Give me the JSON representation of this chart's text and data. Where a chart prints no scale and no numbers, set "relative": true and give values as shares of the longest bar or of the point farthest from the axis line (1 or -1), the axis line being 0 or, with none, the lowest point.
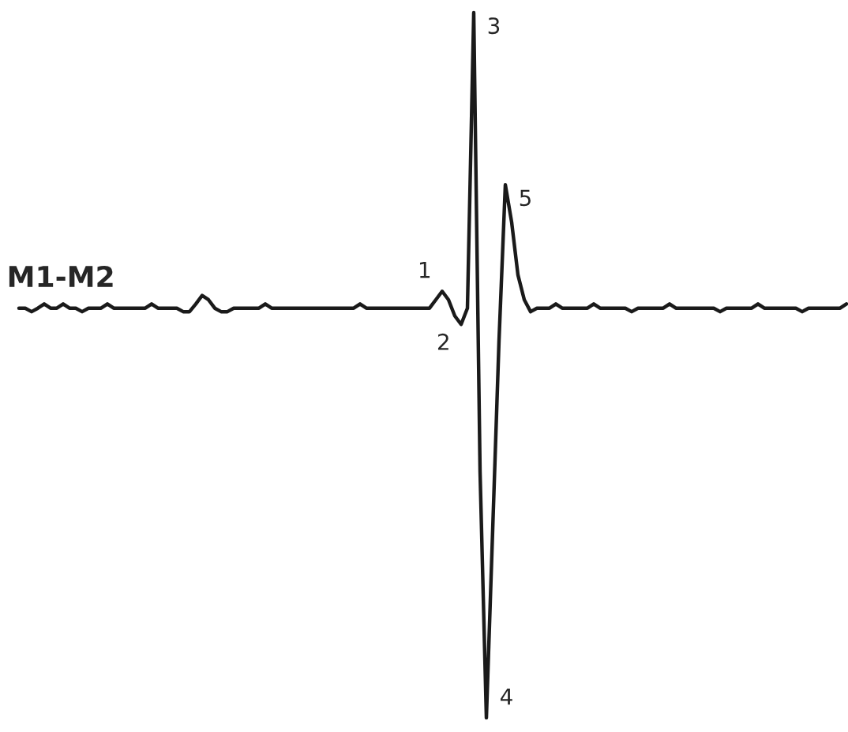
{
  "chart_data": {
    "type": "line",
    "relative": true,
    "annotations": [
      "M1-M2",
      "1",
      "2",
      "3",
      "4",
      "5"
    ],
    "categories": [
      null,
      null,
      null,
      null,
      null,
      null,
      null,
      null,
      null,
      null,
      null,
      null,
      null,
      null,
      null,
      null,
      null,
      null,
      null,
      null,
      null,
      null,
      null,
      null,
      null,
      null,
      null,
      null,
      null,
      null,
      null,
      null,
      null,
      null,
      null,
      null,
      null,
      null,
      null,
      null,
      null,
      null,
      null,
      null,
      null,
      null,
      null,
      null,
      null,
      null,
      null,
      null,
      null,
      null,
      null,
      null,
      null,
      null,
      null,
      null,
      null,
      null,
      null,
      null,
      null,
      null,
      null,
      null,
      null,
      null,
      null,
      null,
      null,
      null,
      null,
      null,
      null,
      null,
      null,
      null,
      null,
      null,
      null,
      null,
      null,
      null,
      null,
      null,
      null,
      null,
      null,
      null,
      null,
      null,
      null,
      null,
      null,
      null,
      null,
      null,
      null,
      null,
      null,
      null,
      null,
      null,
      null,
      null,
      null,
      null,
      null,
      null,
      null,
      null,
      null,
      null,
      null,
      null,
      null,
      null,
      null,
      null,
      null,
      null,
      null,
      null,
      null,
      null,
      null,
      null,
      null,
      null
    ],
    "series": [
      {
        "color": "#1a1a1a",
        "values": [
          0.581,
          0.581,
          0.576,
          0.581,
          0.587,
          0.581,
          0.581,
          0.587,
          0.581,
          0.581,
          0.576,
          0.581,
          0.581,
          0.581,
          0.587,
          0.581,
          0.581,
          0.581,
          0.581,
          0.581,
          0.581,
          0.587,
          0.581,
          0.581,
          0.581,
          0.581,
          0.576,
          0.576,
          0.587,
          0.599,
          0.593,
          0.581,
          0.576,
          0.576,
          0.581,
          0.581,
          0.581,
          0.581,
          0.581,
          0.587,
          0.581,
          0.581,
          0.581,
          0.581,
          0.581,
          0.581,
          0.581,
          0.581,
          0.581,
          0.581,
          0.581,
          0.581,
          0.581,
          0.581,
          0.587,
          0.581,
          0.581,
          0.581,
          0.581,
          0.581,
          0.581,
          0.581,
          0.581,
          0.581,
          0.581,
          0.581,
          0.593,
          0.605,
          0.593,
          0.57,
          0.558,
          0.581,
          1,
          0.349,
          0,
          0.267,
          0.535,
          0.756,
          0.703,
          0.628,
          0.593,
          0.576,
          0.581,
          0.581,
          0.581,
          0.587,
          0.581,
          0.581,
          0.581,
          0.581,
          0.581,
          0.587,
          0.581,
          0.581,
          0.581,
          0.581,
          0.581,
          0.576,
          0.581,
          0.581,
          0.581,
          0.581,
          0.581,
          0.587,
          0.581,
          0.581,
          0.581,
          0.581,
          0.581,
          0.581,
          0.581,
          0.576,
          0.581,
          0.581,
          0.581,
          0.581,
          0.581,
          0.587,
          0.581,
          0.581,
          0.581,
          0.581,
          0.581,
          0.581,
          0.576,
          0.581,
          0.581,
          0.581,
          0.581,
          0.581,
          0.581,
          0.587
        ]
      }
    ]
  }
}
